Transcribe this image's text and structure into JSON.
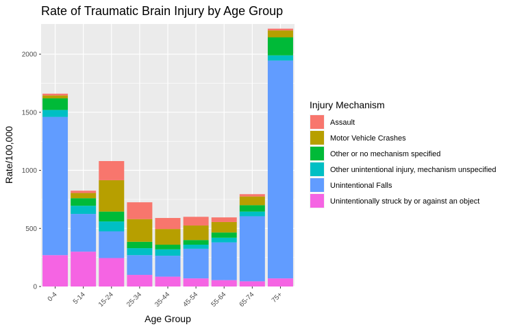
{
  "chart_data": {
    "type": "bar",
    "stacked": true,
    "title": "Rate of Traumatic Brain Injury by Age Group",
    "xlabel": "Age Group",
    "ylabel": "Rate/100,000",
    "ylim": [
      0,
      2260
    ],
    "yticks": [
      0,
      500,
      1000,
      1500,
      2000
    ],
    "grid": true,
    "legend_position": "right",
    "legend_title": "Injury Mechanism",
    "categories": [
      "0-4",
      "5-14",
      "15-24",
      "25-34",
      "35-44",
      "45-54",
      "55-64",
      "65-74",
      "75+"
    ],
    "series": [
      {
        "name": "Unintentionally struck by or against an object",
        "color": "#F564E3",
        "values": [
          270,
          300,
          245,
          100,
          85,
          70,
          55,
          45,
          70
        ]
      },
      {
        "name": "Unintentional Falls",
        "color": "#619CFF",
        "values": [
          1190,
          325,
          230,
          170,
          180,
          255,
          325,
          560,
          1875
        ]
      },
      {
        "name": "Other unintentional injury, mechanism unspecified",
        "color": "#00BFC4",
        "values": [
          60,
          70,
          85,
          60,
          55,
          35,
          40,
          40,
          45
        ]
      },
      {
        "name": "Other or no mechanism specified",
        "color": "#00BA38",
        "values": [
          100,
          65,
          85,
          55,
          40,
          40,
          45,
          55,
          155
        ]
      },
      {
        "name": "Motor Vehicle Crashes",
        "color": "#B79F00",
        "values": [
          25,
          45,
          270,
          195,
          135,
          125,
          90,
          75,
          60
        ]
      },
      {
        "name": "Assault",
        "color": "#F8766D",
        "values": [
          15,
          20,
          165,
          145,
          95,
          75,
          40,
          20,
          15
        ]
      }
    ]
  }
}
